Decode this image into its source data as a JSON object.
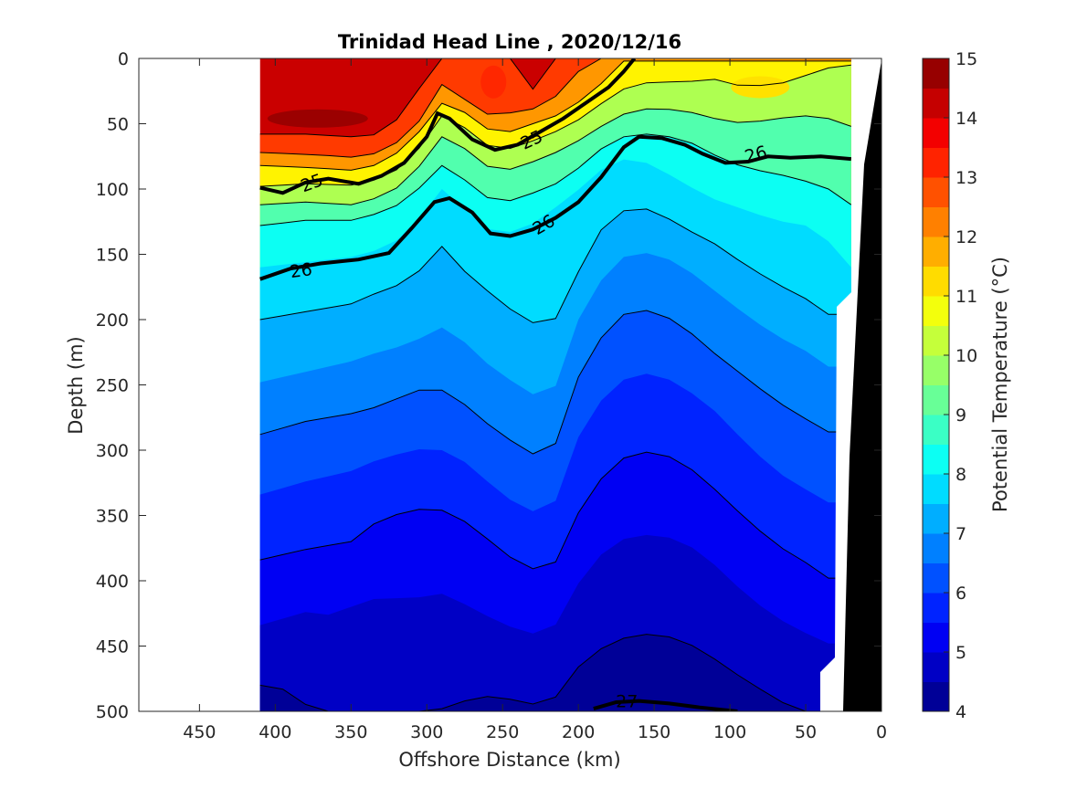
{
  "chart_data": {
    "type": "contour",
    "title": "Trinidad Head Line , 2020/12/16",
    "xlabel": "Offshore Distance (km)",
    "ylabel": "Depth (m)",
    "xlim": [
      490,
      0
    ],
    "ylim": [
      0,
      500
    ],
    "x_direction": "reversed",
    "y_direction": "reversed (depth increases downward)",
    "x_ticks": [
      450,
      400,
      350,
      300,
      250,
      200,
      150,
      100,
      50,
      0
    ],
    "y_ticks": [
      0,
      50,
      100,
      150,
      200,
      250,
      300,
      350,
      400,
      450,
      500
    ],
    "data_extent_km": [
      410,
      20
    ],
    "colorbar": {
      "label": "Potential Temperature (°C)",
      "ticks": [
        4,
        5,
        6,
        7,
        8,
        9,
        10,
        11,
        12,
        13,
        14,
        15
      ],
      "colormap": "jet",
      "levels_step": 0.5
    },
    "temperature_bands": [
      {
        "range": [
          13.5,
          15
        ],
        "location": "surface, 410–310 km and 290–200 km, depth 0–60 m"
      },
      {
        "range": [
          12,
          13.5
        ],
        "location": "upper layer above ~80 m, offshore of 250 km"
      },
      {
        "range": [
          10,
          11
        ],
        "location": "nearshore surface layer, 170–20 km, depth 0–50 m"
      },
      {
        "range": [
          9,
          10
        ],
        "location": "50–140 m depth"
      },
      {
        "range": [
          8,
          9
        ],
        "location": "100–250 m depth, cold tongue of uplift near 150 km"
      },
      {
        "range": [
          7,
          8
        ],
        "location": "200–300 m depth"
      },
      {
        "range": [
          6,
          7
        ],
        "location": "280–420 m depth"
      },
      {
        "range": [
          5,
          6
        ],
        "location": "380–500 m depth"
      },
      {
        "range": [
          4.5,
          5
        ],
        "location": "bottom, 420–500 m depth"
      }
    ],
    "density_contours": [
      {
        "label": "25",
        "points": [
          [
            410,
            99
          ],
          [
            395,
            103
          ],
          [
            380,
            95
          ],
          [
            365,
            92
          ],
          [
            345,
            96
          ],
          [
            330,
            90
          ],
          [
            315,
            80
          ],
          [
            300,
            60
          ],
          [
            293,
            42
          ],
          [
            285,
            46
          ],
          [
            270,
            62
          ],
          [
            255,
            70
          ],
          [
            240,
            66
          ],
          [
            225,
            56
          ],
          [
            210,
            46
          ],
          [
            195,
            34
          ],
          [
            180,
            22
          ],
          [
            170,
            10
          ],
          [
            163,
            0
          ]
        ]
      },
      {
        "label": "26",
        "points": [
          [
            410,
            169
          ],
          [
            390,
            161
          ],
          [
            370,
            157
          ],
          [
            345,
            154
          ],
          [
            325,
            149
          ],
          [
            310,
            130
          ],
          [
            295,
            110
          ],
          [
            285,
            107
          ],
          [
            270,
            118
          ],
          [
            258,
            134
          ],
          [
            245,
            136
          ],
          [
            230,
            131
          ],
          [
            215,
            122
          ],
          [
            200,
            110
          ],
          [
            185,
            91
          ],
          [
            170,
            68
          ],
          [
            160,
            60
          ],
          [
            145,
            61
          ],
          [
            130,
            66
          ],
          [
            118,
            73
          ],
          [
            103,
            80
          ],
          [
            88,
            79
          ],
          [
            75,
            75
          ],
          [
            60,
            76
          ],
          [
            40,
            75
          ],
          [
            20,
            77
          ]
        ]
      },
      {
        "label": "27",
        "points": [
          [
            190,
            498
          ],
          [
            175,
            493
          ],
          [
            160,
            492
          ],
          [
            140,
            494
          ],
          [
            120,
            497
          ],
          [
            95,
            500
          ]
        ]
      }
    ],
    "bathymetry": "black wedge from 26 km at 500 m rising to 0 km at surface"
  }
}
